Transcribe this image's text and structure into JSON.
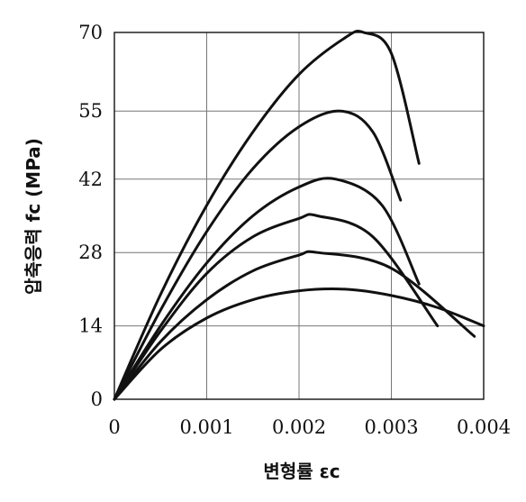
{
  "chart_data": {
    "type": "line",
    "title": "",
    "xlabel": "변형률 εc",
    "ylabel": "압축응력 fc (MPa)",
    "xlim": [
      0,
      0.004
    ],
    "ylim": [
      0,
      70
    ],
    "x_ticks": [
      "0",
      "0.001",
      "0.002",
      "0.003",
      "0.004"
    ],
    "y_ticks": [
      "0",
      "14",
      "28",
      "42",
      "55",
      "70"
    ],
    "x_tick_values": [
      0,
      0.001,
      0.002,
      0.003,
      0.004
    ],
    "y_tick_values": [
      0,
      14,
      28,
      42,
      55,
      70
    ],
    "grid": true,
    "line_color": "#111111",
    "series": [
      {
        "x": [
          0,
          0.0005,
          0.001,
          0.0015,
          0.002,
          0.0025,
          0.0027,
          0.003,
          0.0033
        ],
        "y": [
          0,
          20,
          37,
          51,
          62,
          69,
          70,
          66,
          45
        ]
      },
      {
        "x": [
          0,
          0.0005,
          0.001,
          0.0015,
          0.002,
          0.00245,
          0.0028,
          0.0031
        ],
        "y": [
          0,
          17,
          32,
          44,
          52,
          55,
          51,
          38
        ]
      },
      {
        "x": [
          0,
          0.0005,
          0.001,
          0.0015,
          0.002,
          0.0024,
          0.0029,
          0.0033
        ],
        "y": [
          0,
          14,
          26,
          35,
          40.5,
          42,
          37,
          22
        ]
      },
      {
        "x": [
          0,
          0.0005,
          0.001,
          0.0015,
          0.002,
          0.0022,
          0.0028,
          0.0035
        ],
        "y": [
          0,
          13,
          24,
          31,
          34.5,
          35,
          31,
          14
        ]
      },
      {
        "x": [
          0,
          0.0005,
          0.001,
          0.0015,
          0.002,
          0.0022,
          0.003,
          0.0039
        ],
        "y": [
          0,
          11,
          19,
          24.5,
          27.5,
          28,
          25,
          12
        ]
      },
      {
        "x": [
          0,
          0.0005,
          0.001,
          0.0015,
          0.002,
          0.0025,
          0.003,
          0.0035,
          0.004
        ],
        "y": [
          0,
          9.5,
          15.5,
          19,
          20.7,
          21,
          19.8,
          17.5,
          14
        ]
      }
    ]
  }
}
